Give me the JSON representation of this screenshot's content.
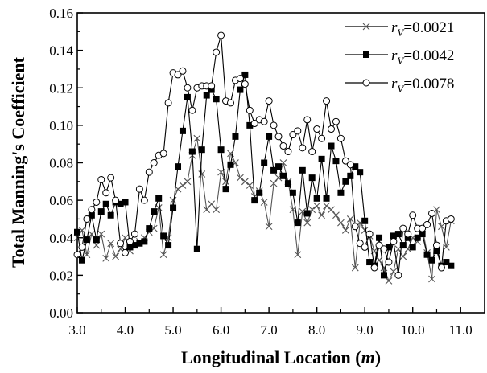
{
  "chart_data": {
    "type": "line",
    "xlabel": "Longitudinal Location (m)",
    "xlabel_main": "Longitudinal Location (",
    "xlabel_unit": "m",
    "xlabel_close": ")",
    "ylabel": "Total Manning's Coefficient",
    "xlim": [
      3.0,
      11.5
    ],
    "ylim": [
      0.0,
      0.16
    ],
    "xticks": [
      "3.0",
      "4.0",
      "5.0",
      "6.0",
      "7.0",
      "8.0",
      "9.0",
      "10.0",
      "11.0"
    ],
    "yticks": [
      "0.00",
      "0.02",
      "0.04",
      "0.06",
      "0.08",
      "0.10",
      "0.12",
      "0.14",
      "0.16"
    ],
    "grid": false,
    "legend_position": "top-right",
    "x": [
      3.0,
      3.1,
      3.2,
      3.3,
      3.4,
      3.5,
      3.6,
      3.7,
      3.8,
      3.9,
      4.0,
      4.1,
      4.2,
      4.3,
      4.4,
      4.5,
      4.6,
      4.7,
      4.8,
      4.9,
      5.0,
      5.1,
      5.2,
      5.3,
      5.4,
      5.5,
      5.6,
      5.7,
      5.8,
      5.9,
      6.0,
      6.1,
      6.2,
      6.3,
      6.4,
      6.5,
      6.6,
      6.7,
      6.8,
      6.9,
      7.0,
      7.1,
      7.2,
      7.3,
      7.4,
      7.5,
      7.6,
      7.7,
      7.8,
      7.9,
      8.0,
      8.1,
      8.2,
      8.3,
      8.4,
      8.5,
      8.6,
      8.7,
      8.8,
      8.9,
      9.0,
      9.1,
      9.2,
      9.3,
      9.4,
      9.5,
      9.6,
      9.7,
      9.8,
      9.9,
      10.0,
      10.1,
      10.2,
      10.3,
      10.4,
      10.5,
      10.6,
      10.7,
      10.8
    ],
    "series": [
      {
        "name_prefix": "r",
        "name_sub": "V",
        "name_value": "=0.0021",
        "marker": "x",
        "values": [
          0.04,
          0.044,
          0.031,
          0.042,
          0.036,
          0.042,
          0.029,
          0.037,
          0.03,
          0.034,
          0.04,
          0.033,
          0.036,
          0.038,
          0.04,
          0.043,
          0.045,
          0.056,
          0.031,
          0.04,
          0.06,
          0.066,
          0.068,
          0.07,
          0.084,
          0.093,
          0.074,
          0.055,
          0.058,
          0.055,
          0.075,
          0.07,
          0.085,
          0.08,
          0.072,
          0.07,
          0.068,
          0.062,
          0.065,
          0.059,
          0.046,
          0.069,
          0.072,
          0.08,
          0.07,
          0.055,
          0.031,
          0.054,
          0.048,
          0.055,
          0.057,
          0.052,
          0.057,
          0.055,
          0.052,
          0.048,
          0.044,
          0.05,
          0.024,
          0.048,
          0.044,
          0.041,
          0.033,
          0.028,
          0.024,
          0.017,
          0.022,
          0.034,
          0.03,
          0.034,
          0.04,
          0.038,
          0.045,
          0.032,
          0.018,
          0.055,
          0.046,
          0.035,
          0.049
        ]
      },
      {
        "name_prefix": "r",
        "name_sub": "V",
        "name_value": "=0.0042",
        "marker": "square",
        "values": [
          0.043,
          0.028,
          0.039,
          0.052,
          0.039,
          0.054,
          0.058,
          0.052,
          0.059,
          0.058,
          0.059,
          0.035,
          0.036,
          0.037,
          0.038,
          0.045,
          0.054,
          0.061,
          0.041,
          0.036,
          0.056,
          0.078,
          0.097,
          0.115,
          0.086,
          0.034,
          0.087,
          0.116,
          0.119,
          0.114,
          0.087,
          0.066,
          0.079,
          0.094,
          0.119,
          0.127,
          0.1,
          0.06,
          0.064,
          0.08,
          0.094,
          0.076,
          0.078,
          0.073,
          0.069,
          0.064,
          0.048,
          0.076,
          0.053,
          0.072,
          0.061,
          0.082,
          0.061,
          0.089,
          0.081,
          0.064,
          0.07,
          0.073,
          0.078,
          0.075,
          0.049,
          0.027,
          0.025,
          0.04,
          0.02,
          0.035,
          0.041,
          0.042,
          0.036,
          0.04,
          0.035,
          0.04,
          0.042,
          0.031,
          0.028,
          0.033,
          0.025,
          0.027,
          0.025
        ]
      },
      {
        "name_prefix": "r",
        "name_sub": "V",
        "name_value": "=0.0078",
        "marker": "circle",
        "values": [
          0.031,
          0.035,
          0.05,
          0.055,
          0.059,
          0.071,
          0.064,
          0.072,
          0.06,
          0.037,
          0.032,
          0.038,
          0.042,
          0.066,
          0.06,
          0.075,
          0.08,
          0.084,
          0.085,
          0.112,
          0.128,
          0.127,
          0.129,
          0.12,
          0.108,
          0.12,
          0.121,
          0.121,
          0.121,
          0.139,
          0.148,
          0.113,
          0.112,
          0.124,
          0.125,
          0.122,
          0.108,
          0.101,
          0.103,
          0.102,
          0.113,
          0.1,
          0.094,
          0.089,
          0.086,
          0.095,
          0.097,
          0.088,
          0.103,
          0.086,
          0.098,
          0.093,
          0.113,
          0.098,
          0.102,
          0.093,
          0.081,
          0.079,
          0.046,
          0.037,
          0.035,
          0.042,
          0.024,
          0.036,
          0.034,
          0.027,
          0.038,
          0.02,
          0.045,
          0.042,
          0.052,
          0.045,
          0.045,
          0.047,
          0.053,
          0.036,
          0.024,
          0.049,
          0.05
        ]
      }
    ]
  }
}
